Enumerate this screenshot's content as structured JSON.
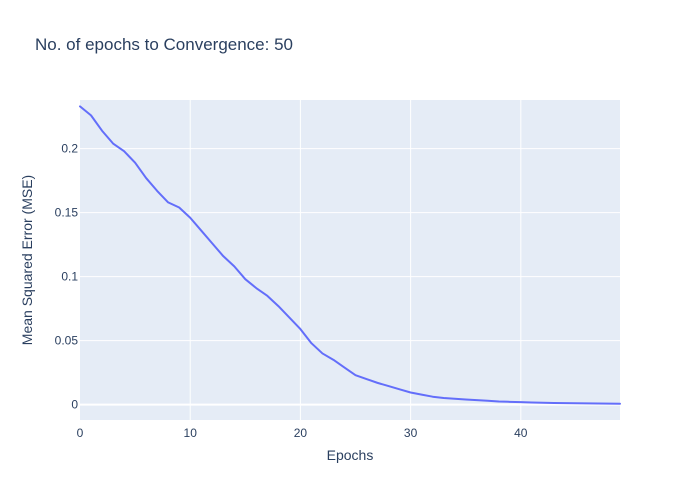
{
  "chart_data": {
    "type": "line",
    "title": "No. of epochs to Convergence: 50",
    "xlabel": "Epochs",
    "ylabel": "Mean Squared Error (MSE)",
    "xlim": [
      0,
      49
    ],
    "ylim": [
      -0.012,
      0.238
    ],
    "grid": true,
    "x_ticks": [
      0,
      10,
      20,
      30,
      40
    ],
    "x_tick_labels": [
      "0",
      "10",
      "20",
      "30",
      "40"
    ],
    "y_ticks": [
      0,
      0.05,
      0.1,
      0.15,
      0.2
    ],
    "y_tick_labels": [
      "0",
      "0.05",
      "0.1",
      "0.15",
      "0.2"
    ],
    "colors": {
      "series": "#636efa",
      "plot_background": "#e5ecf6",
      "grid": "#ffffff",
      "text": "#2a3f5f"
    },
    "series": [
      {
        "color": "#636efa",
        "x": [
          0,
          1,
          2,
          3,
          4,
          5,
          6,
          7,
          8,
          9,
          10,
          11,
          12,
          13,
          14,
          15,
          16,
          17,
          18,
          19,
          20,
          21,
          22,
          23,
          24,
          25,
          26,
          27,
          28,
          29,
          30,
          31,
          32,
          33,
          34,
          35,
          36,
          37,
          38,
          39,
          40,
          41,
          42,
          43,
          44,
          45,
          46,
          47,
          48,
          49
        ],
        "y": [
          0.233,
          0.226,
          0.214,
          0.204,
          0.198,
          0.189,
          0.177,
          0.167,
          0.158,
          0.154,
          0.146,
          0.136,
          0.126,
          0.116,
          0.108,
          0.098,
          0.091,
          0.085,
          0.077,
          0.068,
          0.059,
          0.048,
          0.04,
          0.035,
          0.029,
          0.023,
          0.02,
          0.017,
          0.0145,
          0.012,
          0.0095,
          0.0078,
          0.0062,
          0.0052,
          0.0046,
          0.004,
          0.0035,
          0.003,
          0.0025,
          0.0022,
          0.002,
          0.0017,
          0.0015,
          0.0013,
          0.0012,
          0.0011,
          0.001,
          0.0009,
          0.0008,
          0.0007
        ]
      }
    ]
  }
}
